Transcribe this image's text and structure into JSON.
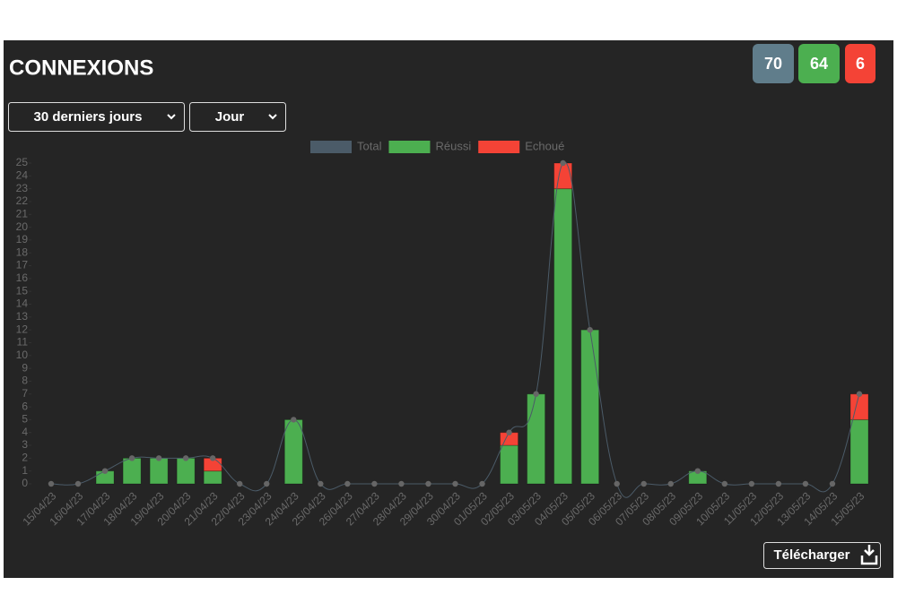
{
  "header": {
    "title": "CONNEXIONS",
    "badges": {
      "total": 70,
      "success": 64,
      "failed": 6
    }
  },
  "filters": {
    "period": "30 derniers jours",
    "granularity": "Jour"
  },
  "download_button": "Télécharger",
  "chart_data": {
    "type": "bar",
    "stacked": true,
    "legend": "top",
    "categories": [
      "15/04/23",
      "16/04/23",
      "17/04/23",
      "18/04/23",
      "19/04/23",
      "20/04/23",
      "21/04/23",
      "22/04/23",
      "23/04/23",
      "24/04/23",
      "25/04/23",
      "26/04/23",
      "27/04/23",
      "28/04/23",
      "29/04/23",
      "30/04/23",
      "01/05/23",
      "02/05/23",
      "03/05/23",
      "04/05/23",
      "05/05/23",
      "06/05/23",
      "07/05/23",
      "08/05/23",
      "09/05/23",
      "10/05/23",
      "11/05/23",
      "12/05/23",
      "13/05/23",
      "14/05/23",
      "15/05/23"
    ],
    "series": [
      {
        "name": "Total",
        "type": "line",
        "color": "#4b5b68",
        "values": [
          0,
          0,
          1,
          2,
          2,
          2,
          2,
          0,
          0,
          5,
          0,
          0,
          0,
          0,
          0,
          0,
          0,
          4,
          7,
          25,
          12,
          0,
          0,
          0,
          1,
          0,
          0,
          0,
          0,
          0,
          7
        ]
      },
      {
        "name": "Réussi",
        "type": "bar",
        "color": "#4caf50",
        "values": [
          0,
          0,
          1,
          2,
          2,
          2,
          1,
          0,
          0,
          5,
          0,
          0,
          0,
          0,
          0,
          0,
          0,
          3,
          7,
          23,
          12,
          0,
          0,
          0,
          1,
          0,
          0,
          0,
          0,
          0,
          5
        ]
      },
      {
        "name": "Echoué",
        "type": "bar",
        "color": "#f44336",
        "values": [
          0,
          0,
          0,
          0,
          0,
          0,
          1,
          0,
          0,
          0,
          0,
          0,
          0,
          0,
          0,
          0,
          0,
          1,
          0,
          2,
          0,
          0,
          0,
          0,
          0,
          0,
          0,
          0,
          0,
          0,
          2
        ]
      }
    ],
    "ylim": [
      0,
      25
    ],
    "yticks": [
      0,
      1,
      2,
      3,
      4,
      5,
      6,
      7,
      8,
      9,
      10,
      11,
      12,
      13,
      14,
      15,
      16,
      17,
      18,
      19,
      20,
      21,
      22,
      23,
      24,
      25
    ]
  }
}
